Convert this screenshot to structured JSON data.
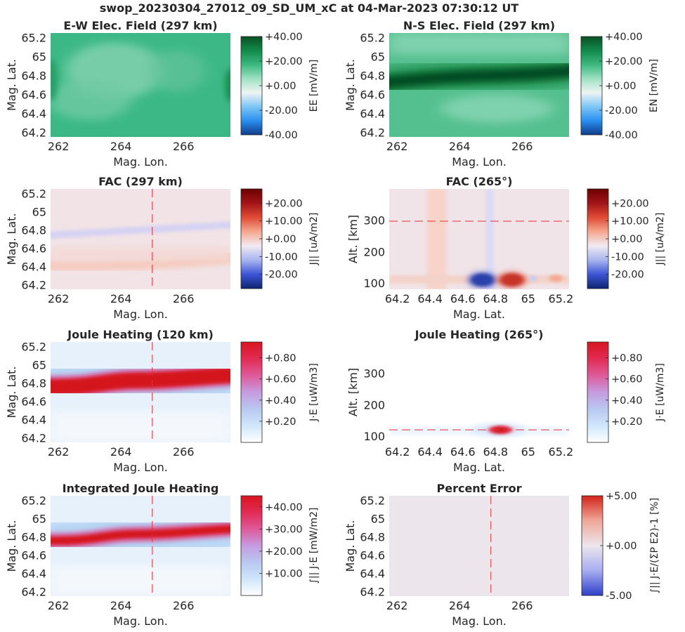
{
  "suptitle": "swop_20230304_27012_09_SD_UM_xC at 04-Mar-2023 07:30:12 UT",
  "colors": {
    "redline": "#e0303a",
    "green_scale": [
      "#103b8a",
      "#2a8ff0",
      "#7dc6f5",
      "#eef4f4",
      "#9ee0c4",
      "#3cb87f",
      "#128a4b",
      "#0a4f24"
    ],
    "fac_scale": [
      "#0c2470",
      "#3d55d6",
      "#a8b4f0",
      "#f1eaf2",
      "#f5a890",
      "#e04a35",
      "#a31417",
      "#6b0000"
    ],
    "joule_scale": [
      "#ffffff",
      "#cfe6fb",
      "#b9c8f0",
      "#c69be0",
      "#df5a9a",
      "#e22b55",
      "#d8141e"
    ],
    "error_scale": [
      "#2f3fc9",
      "#a7aef0",
      "#ece6ec",
      "#f0a799",
      "#d3231b"
    ]
  },
  "chart_data": [
    {
      "id": "ew",
      "type": "heatmap",
      "title": "E-W Elec. Field (297 km)",
      "xlabel": "Mag. Lon.",
      "ylabel": "Mag. Lat.",
      "xticks": [
        "262",
        "264",
        "266"
      ],
      "yticks": [
        "64.2",
        "64.4",
        "64.6",
        "64.8",
        "65",
        "65.2"
      ],
      "xlim": [
        261.75,
        267.5
      ],
      "ylim": [
        64.15,
        65.25
      ],
      "cbar_label": "E_E [mV/m]",
      "cbar_ticks": [
        "+40.00",
        "+20.00",
        "+0.00",
        "-20.00",
        "-40.00"
      ],
      "clim": [
        -40,
        40
      ],
      "field_description_value": 22
    },
    {
      "id": "ns",
      "type": "heatmap",
      "title": "N-S Elec. Field (297 km)",
      "xlabel": "Mag. Lon.",
      "ylabel": "Mag. Lat.",
      "xticks": [
        "262",
        "264",
        "266"
      ],
      "yticks": [
        "64.2",
        "64.4",
        "64.6",
        "64.8",
        "65",
        "65.2"
      ],
      "xlim": [
        261.75,
        267.5
      ],
      "ylim": [
        64.15,
        65.25
      ],
      "cbar_label": "E_N [mV/m]",
      "cbar_ticks": [
        "+40.00",
        "+20.00",
        "+0.00",
        "-20.00",
        "-40.00"
      ],
      "clim": [
        -40,
        40
      ],
      "band_lat": 64.78,
      "band_peak": 40
    },
    {
      "id": "fac_map",
      "type": "heatmap",
      "title": "FAC (297 km)",
      "xlabel": "Mag. Lon.",
      "ylabel": "Mag. Lat.",
      "xticks": [
        "262",
        "264",
        "266"
      ],
      "yticks": [
        "64.2",
        "64.4",
        "64.6",
        "64.8",
        "65",
        "65.2"
      ],
      "xlim": [
        261.75,
        267.5
      ],
      "ylim": [
        64.15,
        65.25
      ],
      "cbar_label": "J_|| [uA/m^2]",
      "cbar_ticks": [
        "+20.00",
        "+10.00",
        "+0.00",
        "-10.00",
        "-20.00"
      ],
      "clim": [
        -28,
        28
      ],
      "vline_x": 265
    },
    {
      "id": "fac_alt",
      "type": "heatmap",
      "title": "FAC (265°)",
      "xlabel": "Mag. Lat.",
      "ylabel": "Alt. [km]",
      "xticks": [
        "64.2",
        "64.4",
        "64.6",
        "64.8",
        "65",
        "65.2"
      ],
      "yticks": [
        "100",
        "200",
        "300"
      ],
      "xlim": [
        64.15,
        65.25
      ],
      "ylim": [
        80,
        400
      ],
      "cbar_label": "J_|| [uA/m^2]",
      "cbar_ticks": [
        "+20.00",
        "+10.00",
        "+0.00",
        "-10.00",
        "-20.00"
      ],
      "clim": [
        -28,
        28
      ],
      "hline_y": 297
    },
    {
      "id": "jh_map",
      "type": "heatmap",
      "title": "Joule Heating (120 km)",
      "xlabel": "Mag. Lon.",
      "ylabel": "Mag. Lat.",
      "xticks": [
        "262",
        "264",
        "266"
      ],
      "yticks": [
        "64.2",
        "64.4",
        "64.6",
        "64.8",
        "65",
        "65.2"
      ],
      "xlim": [
        261.75,
        267.5
      ],
      "ylim": [
        64.15,
        65.25
      ],
      "cbar_label": "J·E [uW/m^3]",
      "cbar_ticks": [
        "+0.80",
        "+0.60",
        "+0.40",
        "+0.20"
      ],
      "clim": [
        0,
        0.95
      ],
      "vline_x": 265
    },
    {
      "id": "jh_alt",
      "type": "heatmap",
      "title": "Joule Heating (265°)",
      "xlabel": "Mag. Lat.",
      "ylabel": "Alt. [km]",
      "xticks": [
        "64.2",
        "64.4",
        "64.6",
        "64.8",
        "65",
        "65.2"
      ],
      "yticks": [
        "100",
        "200",
        "300"
      ],
      "xlim": [
        64.15,
        65.25
      ],
      "ylim": [
        80,
        400
      ],
      "cbar_label": "J·E [uW/m^3]",
      "cbar_ticks": [
        "+0.80",
        "+0.60",
        "+0.40",
        "+0.20"
      ],
      "clim": [
        0,
        0.95
      ],
      "hline_y": 120
    },
    {
      "id": "ijh",
      "type": "heatmap",
      "title": "Integrated Joule Heating",
      "xlabel": "Mag. Lon.",
      "ylabel": "Mag. Lat.",
      "xticks": [
        "262",
        "264",
        "266"
      ],
      "yticks": [
        "64.2",
        "64.4",
        "64.6",
        "64.8",
        "65",
        "65.2"
      ],
      "xlim": [
        261.75,
        267.5
      ],
      "ylim": [
        64.15,
        65.25
      ],
      "cbar_label": "∫_|| J·E [mW/m^2]",
      "cbar_ticks": [
        "+40.00",
        "+30.00",
        "+20.00",
        "+10.00"
      ],
      "clim": [
        0,
        45
      ],
      "vline_x": 265
    },
    {
      "id": "err",
      "type": "heatmap",
      "title": "Percent Error",
      "xlabel": "Mag. Lon.",
      "ylabel": "Mag. Lat.",
      "xticks": [
        "262",
        "264",
        "266"
      ],
      "yticks": [
        "64.2",
        "64.4",
        "64.6",
        "64.8",
        "65",
        "65.2"
      ],
      "xlim": [
        261.75,
        267.5
      ],
      "ylim": [
        64.15,
        65.25
      ],
      "cbar_label": "∫_|| J·E/(Σ_P E^2)-1 [%]",
      "cbar_ticks": [
        "+5.00",
        "+0.00",
        "-5.00"
      ],
      "clim": [
        -5,
        5
      ],
      "vline_x": 265
    }
  ]
}
